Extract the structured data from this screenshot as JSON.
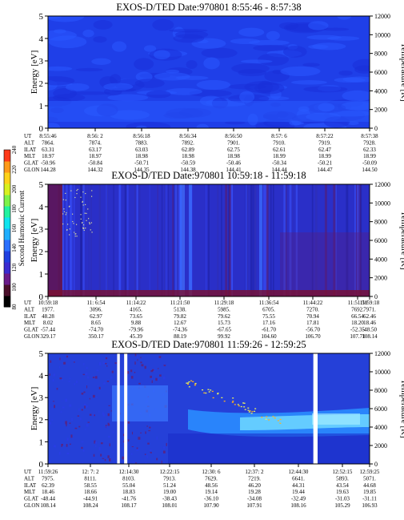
{
  "colorbar": {
    "label": "Second Harmonic Current",
    "ticks": [
      "80",
      "100",
      "120",
      "140",
      "160",
      "180",
      "200",
      "220",
      "240"
    ],
    "colors": [
      "#000000",
      "#4a0f2a",
      "#6a1b8a",
      "#3a2bd0",
      "#1f3fe0",
      "#2a70ff",
      "#1faeff",
      "#10e4ee",
      "#22f2a0",
      "#7df24a",
      "#d8f020",
      "#ffd21a",
      "#ff9a1a",
      "#ff3a1a"
    ]
  },
  "chart_data": [
    {
      "type": "heatmap",
      "title": "EXOS-D/TED   Date:970801   8:55:46 - 8:57:38",
      "ylabel": "Energy [eV]",
      "y2label": "Temperature [K]",
      "ylim": [
        0,
        5
      ],
      "y_ticks": [
        "0",
        "1",
        "2",
        "3",
        "4",
        "5"
      ],
      "y2lim": [
        0,
        12000
      ],
      "y2_ticks": [
        "0",
        "2000",
        "4000",
        "6000",
        "8000",
        "10000",
        "12000"
      ],
      "background": "#1f3fe8",
      "gaps": [],
      "rows": [
        {
          "label": "UT",
          "values": [
            "8:55:46",
            "8:56: 2",
            "8:56:18",
            "8:56:34",
            "8:56:50",
            "8:57: 6",
            "8:57:22",
            "8:57:38"
          ]
        },
        {
          "label": "ALT",
          "values": [
            "7864.",
            "7874.",
            "7883.",
            "7892.",
            "7901.",
            "7910.",
            "7919.",
            "7928."
          ]
        },
        {
          "label": "ILAT",
          "values": [
            "63.31",
            "63.17",
            "63.03",
            "62.89",
            "62.75",
            "62.61",
            "62.47",
            "62.33"
          ]
        },
        {
          "label": "MLT",
          "values": [
            "18.97",
            "18.97",
            "18.98",
            "18.98",
            "18.98",
            "18.99",
            "18.99",
            "18.99"
          ]
        },
        {
          "label": "GLAT",
          "values": [
            "-50.96",
            "-50.84",
            "-50.71",
            "-50.59",
            "-50.46",
            "-50.34",
            "-50.21",
            "-50.09"
          ]
        },
        {
          "label": "GLON",
          "values": [
            "144.28",
            "144.32",
            "144.35",
            "144.38",
            "144.41",
            "144.44",
            "144.47",
            "144.50"
          ]
        }
      ]
    },
    {
      "type": "heatmap",
      "title": "EXOS-D/TED   Date:970801   10:59:18 - 11:59:18",
      "ylabel": "Energy [eV]",
      "y2label": "Temperature [K]",
      "ylim": [
        0,
        5
      ],
      "y_ticks": [
        "0",
        "1",
        "2",
        "3",
        "4",
        "5"
      ],
      "y2lim": [
        0,
        12000
      ],
      "y2_ticks": [
        "0",
        "2000",
        "4000",
        "6000",
        "8000",
        "10000",
        "12000"
      ],
      "background": "#2a2fc8",
      "gaps": [],
      "rows": [
        {
          "label": "UT",
          "values": [
            "10:59:18",
            "11: 6:54",
            "11:14:22",
            "11:21:50",
            "11:29:18",
            "11:36:54",
            "11:44:22",
            "11:51:50",
            "11:59:18"
          ]
        },
        {
          "label": "ALT",
          "values": [
            "1977.",
            "3096.",
            "4165.",
            "5138.",
            "5985.",
            "6705.",
            "7270.",
            "7692.",
            "7971."
          ]
        },
        {
          "label": "ILAT",
          "values": [
            "48.28",
            "62.97",
            "73.65",
            "79.82",
            "79.62",
            "75.55",
            "70.94",
            "66.54",
            "62.46"
          ]
        },
        {
          "label": "MLT",
          "values": [
            "8.02",
            "8.65",
            "9.88",
            "12.67",
            "15.73",
            "17.16",
            "17.81",
            "18.20",
            "18.46"
          ]
        },
        {
          "label": "GLAT",
          "values": [
            "-57.44",
            "-74.70",
            "-79.96",
            "-74.36",
            "-67.65",
            "-61.70",
            "-56.70",
            "-52.35",
            "-48.50"
          ]
        },
        {
          "label": "GLON",
          "values": [
            "329.17",
            "350.17",
            "45.39",
            "88.19",
            "99.92",
            "104.60",
            "106.70",
            "107.71",
            "108.14"
          ]
        }
      ]
    },
    {
      "type": "heatmap",
      "title": "EXOS-D/TED   Date:970801   11:59:26 - 12:59:25",
      "ylabel": "Energy [eV]",
      "y2label": "Temperature [K]",
      "ylim": [
        0,
        5
      ],
      "y_ticks": [
        "0",
        "1",
        "2",
        "3",
        "4",
        "5"
      ],
      "y2lim": [
        0,
        12000
      ],
      "y2_ticks": [
        "0",
        "2000",
        "4000",
        "6000",
        "8000",
        "10000",
        "12000"
      ],
      "background": "#2540d8",
      "gaps": [
        [
          12.9,
          13.4
        ],
        [
          14.2,
          14.8
        ],
        [
          49.5,
          50.3
        ]
      ],
      "rows": [
        {
          "label": "UT",
          "values": [
            "11:59:26",
            "12: 7: 2",
            "12:14:30",
            "12:22:15",
            "12:30: 6",
            "12:37: 2",
            "12:44:30",
            "12:52:15",
            "12:59:25"
          ]
        },
        {
          "label": "ALT",
          "values": [
            "7975.",
            "8111.",
            "8103.",
            "7913.",
            "7629.",
            "7219.",
            "6641.",
            "5893.",
            "5071."
          ]
        },
        {
          "label": "ILAT",
          "values": [
            "62.39",
            "58.55",
            "55.04",
            "51.24",
            "48.56",
            "46.20",
            "44.31",
            "43.54",
            "44.68"
          ]
        },
        {
          "label": "MLT",
          "values": [
            "18.46",
            "18.66",
            "18.83",
            "19.00",
            "19.14",
            "19.28",
            "19.44",
            "19.63",
            "19.85"
          ]
        },
        {
          "label": "GLAT",
          "values": [
            "-48.44",
            "-44.91",
            "-41.76",
            "-38.43",
            "-36.10",
            "-34.08",
            "-32.49",
            "-31.03",
            "-31.11"
          ]
        },
        {
          "label": "GLON",
          "values": [
            "108.14",
            "108.24",
            "108.17",
            "108.01",
            "107.90",
            "107.91",
            "108.16",
            "105.29",
            "106.93"
          ]
        }
      ]
    }
  ]
}
